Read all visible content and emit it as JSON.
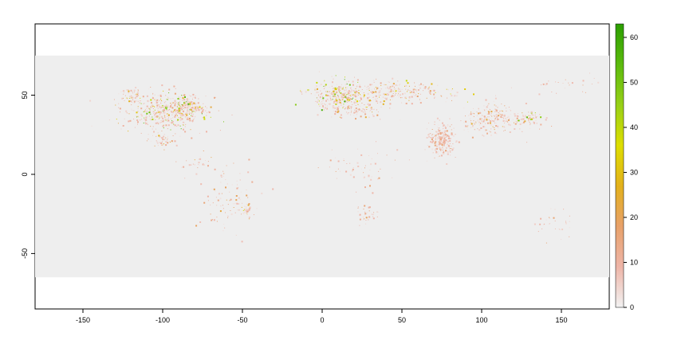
{
  "chart_data": {
    "type": "heatmap",
    "title": "",
    "xlabel": "",
    "ylabel": "",
    "xlim": [
      -180,
      180
    ],
    "ylim": [
      -85,
      95
    ],
    "data_extent": {
      "x": [
        -180,
        180
      ],
      "y": [
        -65,
        75
      ]
    },
    "x_ticks": [
      {
        "value": -150,
        "label": "-150"
      },
      {
        "value": -100,
        "label": "-100"
      },
      {
        "value": -50,
        "label": "-50"
      },
      {
        "value": 0,
        "label": "0"
      },
      {
        "value": 50,
        "label": "50"
      },
      {
        "value": 100,
        "label": "100"
      },
      {
        "value": 150,
        "label": "150"
      }
    ],
    "y_ticks": [
      {
        "value": 50,
        "label": "50"
      },
      {
        "value": 0,
        "label": "0"
      },
      {
        "value": -50,
        "label": "-50"
      }
    ],
    "colorbar": {
      "range": [
        0,
        63
      ],
      "ticks": [
        {
          "value": 0,
          "label": "0"
        },
        {
          "value": 10,
          "label": "10"
        },
        {
          "value": 20,
          "label": "20"
        },
        {
          "value": 30,
          "label": "30"
        },
        {
          "value": 40,
          "label": "40"
        },
        {
          "value": 50,
          "label": "50"
        },
        {
          "value": 60,
          "label": "60"
        }
      ],
      "colors": [
        "#f2f2f2",
        "#eeb5a8",
        "#e8a16a",
        "#e3b11c",
        "#dede00",
        "#97d017",
        "#5bba0e",
        "#2b9e00"
      ]
    },
    "background_color": "#eeeeee",
    "grid": false,
    "clusters": [
      {
        "lon": -100,
        "lat": 40,
        "rlon": 22,
        "rlat": 10,
        "n": 420,
        "maxv": 55
      },
      {
        "lon": -85,
        "lat": 42,
        "rlon": 12,
        "rlat": 6,
        "n": 180,
        "maxv": 63
      },
      {
        "lon": -120,
        "lat": 50,
        "rlon": 6,
        "rlat": 4,
        "n": 50,
        "maxv": 40
      },
      {
        "lon": -100,
        "lat": 22,
        "rlon": 7,
        "rlat": 4,
        "n": 45,
        "maxv": 30
      },
      {
        "lon": -80,
        "lat": 8,
        "rlon": 8,
        "rlat": 5,
        "n": 25,
        "maxv": 25
      },
      {
        "lon": -60,
        "lat": -15,
        "rlon": 14,
        "rlat": 18,
        "n": 90,
        "maxv": 25
      },
      {
        "lon": -48,
        "lat": -22,
        "rlon": 6,
        "rlat": 3,
        "n": 30,
        "maxv": 45
      },
      {
        "lon": 10,
        "lat": 50,
        "rlon": 15,
        "rlat": 8,
        "n": 320,
        "maxv": 60
      },
      {
        "lon": 45,
        "lat": 52,
        "rlon": 32,
        "rlat": 6,
        "n": 260,
        "maxv": 40
      },
      {
        "lon": 20,
        "lat": 40,
        "rlon": 15,
        "rlat": 4,
        "n": 80,
        "maxv": 30
      },
      {
        "lon": 75,
        "lat": 22,
        "rlon": 7,
        "rlat": 8,
        "n": 240,
        "maxv": 18
      },
      {
        "lon": 105,
        "lat": 35,
        "rlon": 15,
        "rlat": 8,
        "n": 220,
        "maxv": 25
      },
      {
        "lon": 128,
        "lat": 35,
        "rlon": 8,
        "rlat": 4,
        "n": 80,
        "maxv": 55
      },
      {
        "lon": 25,
        "lat": 5,
        "rlon": 20,
        "rlat": 12,
        "n": 55,
        "maxv": 20
      },
      {
        "lon": 28,
        "lat": -25,
        "rlon": 6,
        "rlat": 5,
        "n": 35,
        "maxv": 20
      },
      {
        "lon": 145,
        "lat": -30,
        "rlon": 12,
        "rlat": 8,
        "n": 30,
        "maxv": 25
      },
      {
        "lon": 150,
        "lat": 58,
        "rlon": 20,
        "rlat": 6,
        "n": 25,
        "maxv": 15
      }
    ]
  }
}
